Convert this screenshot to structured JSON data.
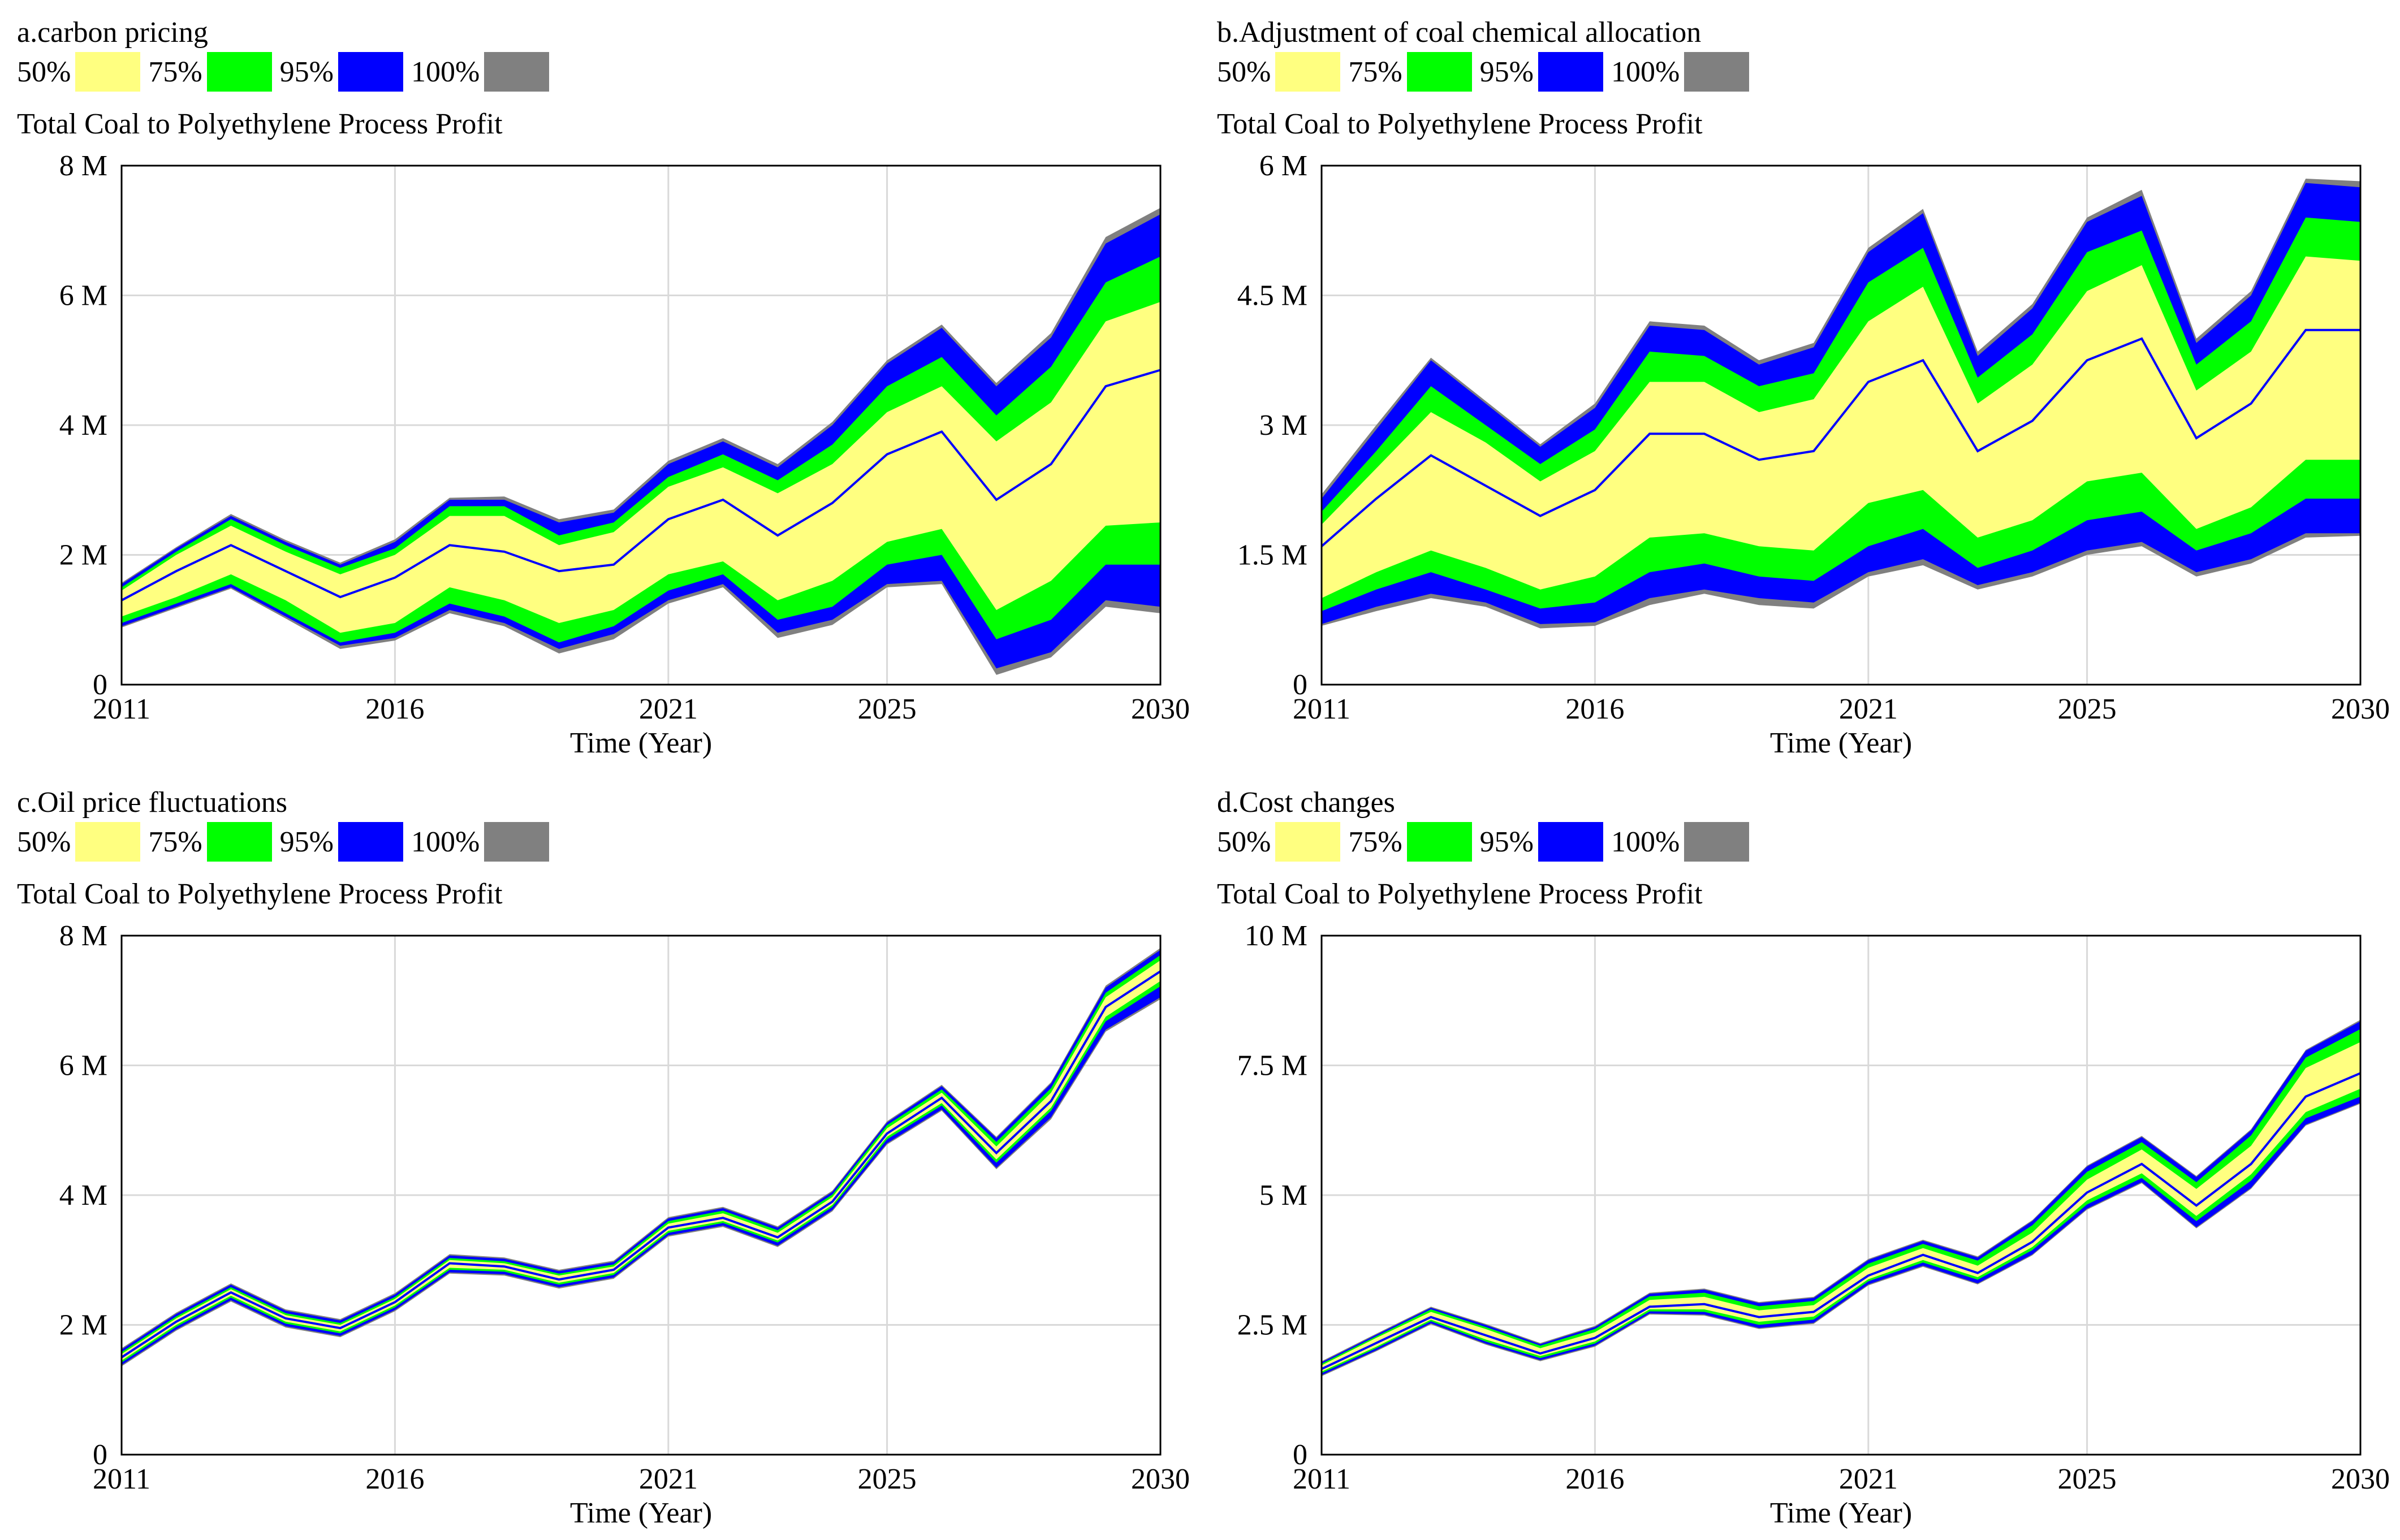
{
  "legend": {
    "labels": [
      "50%",
      "75%",
      "95%",
      "100%"
    ],
    "colors": [
      "#ffff80",
      "#00ff00",
      "#0000ff",
      "#808080"
    ]
  },
  "chart_data": [
    {
      "type": "area",
      "title": "a.carbon pricing",
      "variable": "Total Coal to Polyethylene Process Profit",
      "xlabel": "Time (Year)",
      "xlim": [
        2011,
        2030
      ],
      "x_ticks": [
        "2011",
        "2016",
        "2021",
        "2025",
        "2030"
      ],
      "x_tick_values": [
        2011,
        2016,
        2021,
        2025,
        2030
      ],
      "y_ticks": [
        "0",
        "2 M",
        "4 M",
        "6 M",
        "8 M"
      ],
      "y_tick_values": [
        0,
        2,
        4,
        6,
        8
      ],
      "ylim": [
        0,
        8
      ],
      "x": [
        2011,
        2012,
        2013,
        2014,
        2015,
        2016,
        2017,
        2018,
        2019,
        2020,
        2021,
        2022,
        2023,
        2024,
        2025,
        2026,
        2027,
        2028,
        2029,
        2030
      ],
      "median": [
        1.3,
        1.75,
        2.15,
        1.75,
        1.35,
        1.65,
        2.15,
        2.05,
        1.75,
        1.85,
        2.55,
        2.85,
        2.3,
        2.8,
        3.55,
        3.9,
        2.85,
        3.4,
        4.6,
        4.85
      ],
      "bands": {
        "p50": {
          "lower": [
            1.05,
            1.35,
            1.7,
            1.3,
            0.8,
            0.95,
            1.5,
            1.3,
            0.95,
            1.15,
            1.7,
            1.9,
            1.3,
            1.6,
            2.2,
            2.4,
            1.15,
            1.6,
            2.45,
            2.5
          ],
          "upper": [
            1.45,
            2.0,
            2.45,
            2.05,
            1.7,
            2.0,
            2.6,
            2.6,
            2.15,
            2.35,
            3.05,
            3.35,
            2.95,
            3.4,
            4.2,
            4.6,
            3.75,
            4.35,
            5.6,
            5.9
          ]
        },
        "p75": {
          "lower": [
            0.95,
            1.25,
            1.55,
            1.1,
            0.65,
            0.8,
            1.25,
            1.05,
            0.65,
            0.9,
            1.45,
            1.7,
            1.0,
            1.2,
            1.85,
            2.0,
            0.7,
            1.0,
            1.85,
            1.85
          ],
          "upper": [
            1.5,
            2.05,
            2.55,
            2.15,
            1.8,
            2.1,
            2.75,
            2.75,
            2.3,
            2.5,
            3.2,
            3.55,
            3.15,
            3.7,
            4.6,
            5.05,
            4.15,
            4.9,
            6.2,
            6.6
          ]
        },
        "p95": {
          "lower": [
            0.9,
            1.2,
            1.5,
            1.05,
            0.6,
            0.72,
            1.15,
            0.95,
            0.55,
            0.78,
            1.3,
            1.55,
            0.8,
            1.0,
            1.55,
            1.6,
            0.25,
            0.5,
            1.3,
            1.2
          ],
          "upper": [
            1.55,
            2.1,
            2.6,
            2.2,
            1.85,
            2.2,
            2.85,
            2.85,
            2.5,
            2.65,
            3.4,
            3.75,
            3.35,
            4.0,
            4.95,
            5.5,
            4.6,
            5.35,
            6.8,
            7.25
          ]
        },
        "p100": {
          "lower": [
            0.88,
            1.18,
            1.48,
            1.02,
            0.55,
            0.68,
            1.1,
            0.9,
            0.48,
            0.7,
            1.25,
            1.5,
            0.72,
            0.92,
            1.5,
            1.55,
            0.15,
            0.42,
            1.2,
            1.1
          ],
          "upper": [
            1.57,
            2.12,
            2.63,
            2.23,
            1.88,
            2.24,
            2.88,
            2.9,
            2.55,
            2.7,
            3.45,
            3.8,
            3.4,
            4.05,
            5.0,
            5.55,
            4.65,
            5.42,
            6.9,
            7.35
          ]
        }
      }
    },
    {
      "type": "area",
      "title": "b.Adjustment of coal chemical allocation",
      "variable": "Total Coal to Polyethylene Process Profit",
      "xlabel": "Time (Year)",
      "xlim": [
        2011,
        2030
      ],
      "x_ticks": [
        "2011",
        "2016",
        "2021",
        "2025",
        "2030"
      ],
      "x_tick_values": [
        2011,
        2016,
        2021,
        2025,
        2030
      ],
      "y_ticks": [
        "0",
        "1.5 M",
        "3 M",
        "4.5 M",
        "6 M"
      ],
      "y_tick_values": [
        0,
        1.5,
        3,
        4.5,
        6
      ],
      "ylim": [
        0,
        6
      ],
      "x": [
        2011,
        2012,
        2013,
        2014,
        2015,
        2016,
        2017,
        2018,
        2019,
        2020,
        2021,
        2022,
        2023,
        2024,
        2025,
        2026,
        2027,
        2028,
        2029,
        2030
      ],
      "median": [
        1.6,
        2.15,
        2.65,
        2.3,
        1.95,
        2.25,
        2.9,
        2.9,
        2.6,
        2.7,
        3.5,
        3.75,
        2.7,
        3.05,
        3.75,
        4.0,
        2.85,
        3.25,
        4.1,
        4.1
      ],
      "bands": {
        "p50": {
          "lower": [
            1.0,
            1.3,
            1.55,
            1.35,
            1.1,
            1.25,
            1.7,
            1.75,
            1.6,
            1.55,
            2.1,
            2.25,
            1.7,
            1.9,
            2.35,
            2.45,
            1.8,
            2.05,
            2.6,
            2.6
          ],
          "upper": [
            1.85,
            2.5,
            3.15,
            2.8,
            2.35,
            2.7,
            3.5,
            3.5,
            3.15,
            3.3,
            4.2,
            4.6,
            3.25,
            3.7,
            4.55,
            4.85,
            3.4,
            3.85,
            4.95,
            4.9
          ]
        },
        "p75": {
          "lower": [
            0.85,
            1.1,
            1.3,
            1.1,
            0.88,
            0.95,
            1.3,
            1.4,
            1.25,
            1.2,
            1.6,
            1.8,
            1.35,
            1.55,
            1.9,
            2.0,
            1.55,
            1.75,
            2.15,
            2.15
          ],
          "upper": [
            2.0,
            2.7,
            3.45,
            3.0,
            2.55,
            2.95,
            3.85,
            3.8,
            3.45,
            3.6,
            4.65,
            5.05,
            3.55,
            4.05,
            5.0,
            5.25,
            3.7,
            4.2,
            5.4,
            5.35
          ]
        },
        "p95": {
          "lower": [
            0.7,
            0.9,
            1.05,
            0.95,
            0.7,
            0.72,
            1.0,
            1.1,
            1.0,
            0.95,
            1.3,
            1.45,
            1.15,
            1.3,
            1.55,
            1.65,
            1.3,
            1.45,
            1.75,
            1.75
          ],
          "upper": [
            2.15,
            2.95,
            3.75,
            3.25,
            2.75,
            3.2,
            4.15,
            4.1,
            3.7,
            3.9,
            5.0,
            5.45,
            3.8,
            4.35,
            5.35,
            5.65,
            3.95,
            4.5,
            5.8,
            5.75
          ]
        },
        "p100": {
          "lower": [
            0.68,
            0.85,
            1.0,
            0.9,
            0.65,
            0.68,
            0.92,
            1.05,
            0.92,
            0.88,
            1.25,
            1.38,
            1.1,
            1.25,
            1.5,
            1.6,
            1.25,
            1.4,
            1.7,
            1.72
          ],
          "upper": [
            2.2,
            3.0,
            3.78,
            3.28,
            2.78,
            3.25,
            4.2,
            4.15,
            3.75,
            3.95,
            5.05,
            5.5,
            3.85,
            4.4,
            5.4,
            5.72,
            4.0,
            4.55,
            5.85,
            5.82
          ]
        }
      }
    },
    {
      "type": "area",
      "title": "c.Oil price fluctuations",
      "variable": "Total Coal to Polyethylene Process Profit",
      "xlabel": "Time (Year)",
      "xlim": [
        2011,
        2030
      ],
      "x_ticks": [
        "2011",
        "2016",
        "2021",
        "2025",
        "2030"
      ],
      "x_tick_values": [
        2011,
        2016,
        2021,
        2025,
        2030
      ],
      "y_ticks": [
        "0",
        "2 M",
        "4 M",
        "6 M",
        "8 M"
      ],
      "y_tick_values": [
        0,
        2,
        4,
        6,
        8
      ],
      "ylim": [
        0,
        8
      ],
      "x": [
        2011,
        2012,
        2013,
        2014,
        2015,
        2016,
        2017,
        2018,
        2019,
        2020,
        2021,
        2022,
        2023,
        2024,
        2025,
        2026,
        2027,
        2028,
        2029,
        2030
      ],
      "median": [
        1.5,
        2.05,
        2.5,
        2.1,
        1.95,
        2.35,
        2.95,
        2.9,
        2.7,
        2.85,
        3.5,
        3.65,
        3.35,
        3.9,
        4.95,
        5.5,
        4.65,
        5.45,
        6.9,
        7.45
      ],
      "bands": {
        "p50": {
          "lower": [
            1.45,
            2.0,
            2.45,
            2.05,
            1.9,
            2.3,
            2.88,
            2.85,
            2.65,
            2.8,
            3.45,
            3.6,
            3.3,
            3.85,
            4.9,
            5.42,
            4.55,
            5.35,
            6.75,
            7.3
          ],
          "upper": [
            1.55,
            2.1,
            2.55,
            2.15,
            2.0,
            2.4,
            3.0,
            2.95,
            2.76,
            2.9,
            3.56,
            3.72,
            3.42,
            3.97,
            5.03,
            5.58,
            4.75,
            5.58,
            7.05,
            7.62
          ]
        },
        "p75": {
          "lower": [
            1.42,
            1.97,
            2.42,
            2.02,
            1.87,
            2.27,
            2.85,
            2.82,
            2.62,
            2.77,
            3.42,
            3.57,
            3.27,
            3.82,
            4.86,
            5.38,
            4.5,
            5.3,
            6.68,
            7.22
          ],
          "upper": [
            1.58,
            2.13,
            2.58,
            2.18,
            2.03,
            2.43,
            3.03,
            2.98,
            2.79,
            2.93,
            3.6,
            3.76,
            3.46,
            4.01,
            5.08,
            5.63,
            4.82,
            5.65,
            7.12,
            7.7
          ]
        },
        "p95": {
          "lower": [
            1.38,
            1.93,
            2.38,
            1.98,
            1.83,
            2.23,
            2.81,
            2.78,
            2.58,
            2.73,
            3.38,
            3.53,
            3.22,
            3.77,
            4.8,
            5.32,
            4.42,
            5.2,
            6.55,
            7.05
          ],
          "upper": [
            1.62,
            2.17,
            2.62,
            2.22,
            2.07,
            2.47,
            3.07,
            3.02,
            2.83,
            2.97,
            3.64,
            3.8,
            3.5,
            4.05,
            5.12,
            5.68,
            4.88,
            5.72,
            7.2,
            7.78
          ]
        },
        "p100": {
          "lower": [
            1.36,
            1.91,
            2.36,
            1.96,
            1.81,
            2.21,
            2.79,
            2.76,
            2.56,
            2.71,
            3.36,
            3.51,
            3.2,
            3.75,
            4.78,
            5.3,
            4.4,
            5.17,
            6.52,
            7.02
          ],
          "upper": [
            1.64,
            2.19,
            2.64,
            2.24,
            2.09,
            2.49,
            3.09,
            3.04,
            2.85,
            2.99,
            3.66,
            3.82,
            3.52,
            4.07,
            5.14,
            5.7,
            4.9,
            5.74,
            7.23,
            7.81
          ]
        }
      }
    },
    {
      "type": "area",
      "title": "d.Cost changes",
      "variable": "Total Coal to Polyethylene Process Profit",
      "xlabel": "Time (Year)",
      "xlim": [
        2011,
        2030
      ],
      "x_ticks": [
        "2011",
        "2016",
        "2021",
        "2025",
        "2030"
      ],
      "x_tick_values": [
        2011,
        2016,
        2021,
        2025,
        2030
      ],
      "y_ticks": [
        "0",
        "2.5 M",
        "5 M",
        "7.5 M",
        "10 M"
      ],
      "y_tick_values": [
        0,
        2.5,
        5,
        7.5,
        10
      ],
      "ylim": [
        0,
        10
      ],
      "x": [
        2011,
        2012,
        2013,
        2014,
        2015,
        2016,
        2017,
        2018,
        2019,
        2020,
        2021,
        2022,
        2023,
        2024,
        2025,
        2026,
        2027,
        2028,
        2029,
        2030
      ],
      "median": [
        1.65,
        2.15,
        2.65,
        2.3,
        1.95,
        2.25,
        2.85,
        2.9,
        2.65,
        2.75,
        3.45,
        3.85,
        3.5,
        4.1,
        5.05,
        5.6,
        4.8,
        5.6,
        6.9,
        7.35
      ],
      "bands": {
        "p50": {
          "lower": [
            1.6,
            2.08,
            2.6,
            2.22,
            1.9,
            2.18,
            2.8,
            2.8,
            2.56,
            2.66,
            3.38,
            3.75,
            3.42,
            4.0,
            4.9,
            5.42,
            4.6,
            5.4,
            6.6,
            7.05
          ],
          "upper": [
            1.72,
            2.25,
            2.75,
            2.42,
            2.05,
            2.36,
            2.98,
            3.04,
            2.78,
            2.88,
            3.6,
            3.98,
            3.64,
            4.28,
            5.3,
            5.88,
            5.12,
            5.95,
            7.45,
            7.95
          ]
        },
        "p75": {
          "lower": [
            1.57,
            2.05,
            2.57,
            2.18,
            1.86,
            2.14,
            2.76,
            2.75,
            2.5,
            2.6,
            3.34,
            3.7,
            3.37,
            3.94,
            4.82,
            5.33,
            4.5,
            5.28,
            6.48,
            6.9
          ],
          "upper": [
            1.75,
            2.28,
            2.8,
            2.46,
            2.1,
            2.42,
            3.05,
            3.12,
            2.86,
            2.96,
            3.68,
            4.06,
            3.74,
            4.42,
            5.45,
            6.02,
            5.25,
            6.15,
            7.65,
            8.2
          ]
        },
        "p95": {
          "lower": [
            1.53,
            2.01,
            2.53,
            2.14,
            1.82,
            2.1,
            2.72,
            2.7,
            2.44,
            2.54,
            3.28,
            3.64,
            3.3,
            3.86,
            4.74,
            5.25,
            4.38,
            5.14,
            6.36,
            6.78
          ],
          "upper": [
            1.78,
            2.31,
            2.83,
            2.5,
            2.13,
            2.46,
            3.1,
            3.18,
            2.92,
            3.02,
            3.75,
            4.12,
            3.8,
            4.5,
            5.55,
            6.12,
            5.35,
            6.25,
            7.78,
            8.35
          ]
        },
        "p100": {
          "lower": [
            1.51,
            1.99,
            2.51,
            2.12,
            1.8,
            2.08,
            2.7,
            2.68,
            2.42,
            2.52,
            3.26,
            3.62,
            3.28,
            3.84,
            4.72,
            5.23,
            4.36,
            5.12,
            6.34,
            6.76
          ],
          "upper": [
            1.8,
            2.33,
            2.85,
            2.52,
            2.15,
            2.48,
            3.12,
            3.2,
            2.94,
            3.04,
            3.77,
            4.14,
            3.82,
            4.52,
            5.57,
            6.14,
            5.37,
            6.27,
            7.8,
            8.38
          ]
        }
      }
    }
  ]
}
